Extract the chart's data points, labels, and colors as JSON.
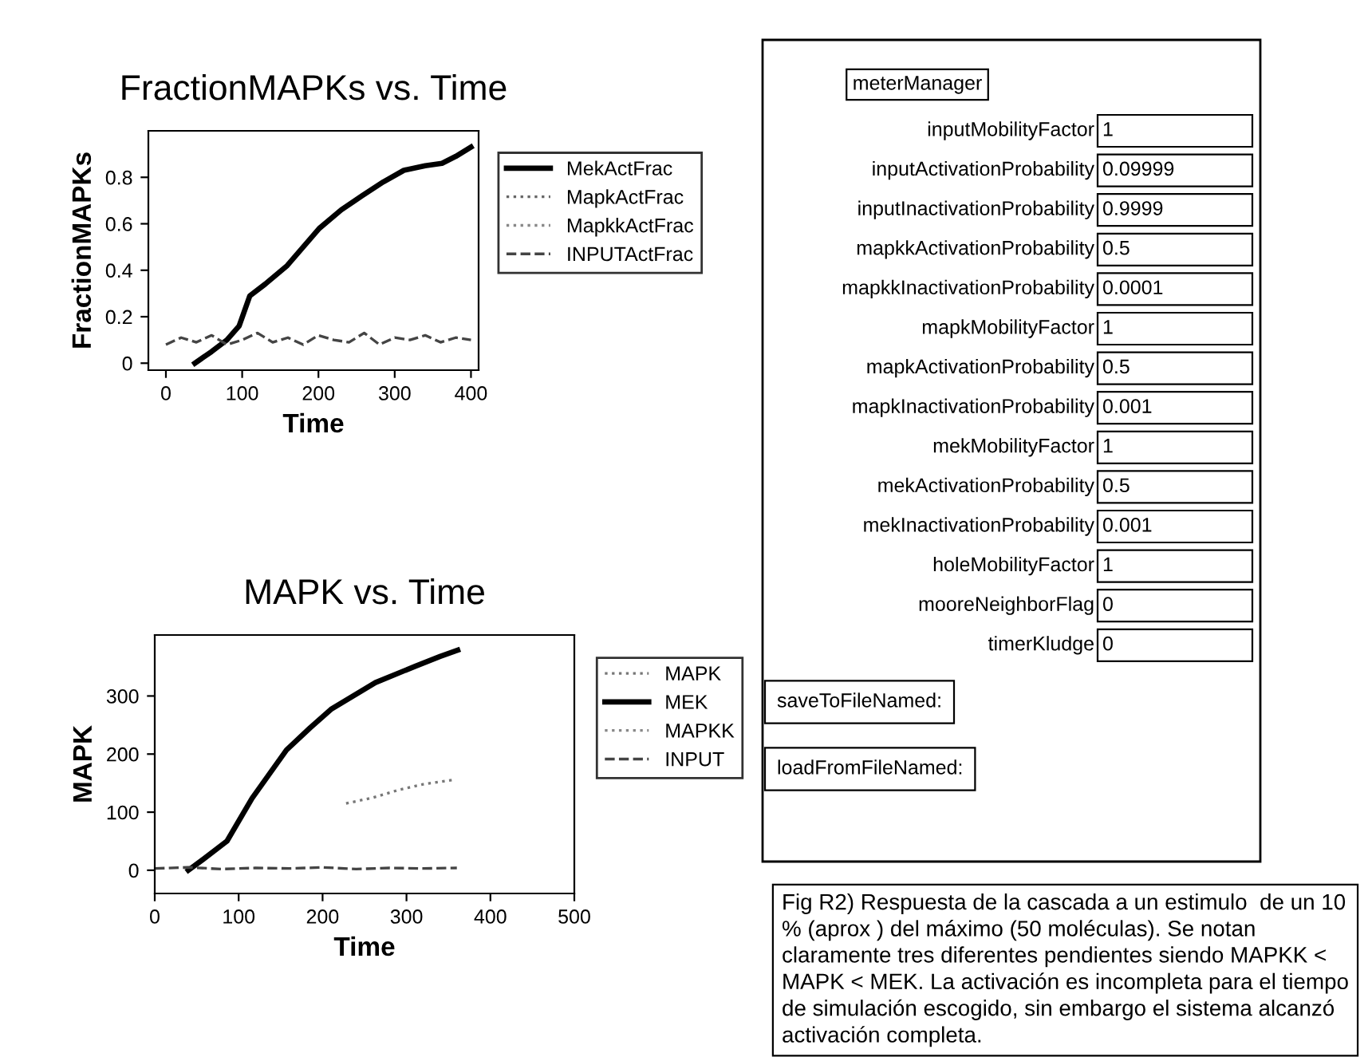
{
  "chart_data": [
    {
      "type": "line",
      "title": "FractionMAPKs vs. Time",
      "xlabel": "Time",
      "ylabel": "FractionMAPKs",
      "xlim": [
        -23,
        410
      ],
      "xticks": [
        0,
        100,
        200,
        300,
        400
      ],
      "ylim": [
        -0.03,
        1.0
      ],
      "yticks": [
        0,
        0.2,
        0.4,
        0.6,
        0.8
      ],
      "legend": "right",
      "grid": false,
      "series": [
        {
          "name": "MekActFrac",
          "color": "#000000",
          "line_style": "solid",
          "x": [
            38,
            60,
            80,
            96,
            110,
            130,
            159,
            180,
            201,
            230,
            257,
            285,
            312,
            340,
            362,
            380,
            400
          ],
          "values": [
            0,
            0.05,
            0.1,
            0.16,
            0.29,
            0.34,
            0.42,
            0.5,
            0.58,
            0.66,
            0.72,
            0.78,
            0.83,
            0.85,
            0.86,
            0.89,
            0.93
          ]
        },
        {
          "name": "MapkActFrac",
          "color": "#666666",
          "line_style": "dotted"
        },
        {
          "name": "MapkkActFrac",
          "color": "#888888",
          "line_style": "dotted"
        },
        {
          "name": "INPUTActFrac",
          "color": "#444444",
          "line_style": "dashed",
          "x": [
            0,
            20,
            40,
            60,
            80,
            100,
            120,
            140,
            160,
            180,
            200,
            220,
            240,
            260,
            280,
            300,
            320,
            340,
            360,
            380,
            400
          ],
          "values": [
            0.08,
            0.11,
            0.09,
            0.12,
            0.08,
            0.1,
            0.13,
            0.09,
            0.11,
            0.08,
            0.12,
            0.1,
            0.09,
            0.13,
            0.08,
            0.11,
            0.1,
            0.12,
            0.09,
            0.11,
            0.1
          ]
        }
      ]
    },
    {
      "type": "other",
      "title": "meterManager",
      "annotations": [
        "inputMobilityFactor",
        "1",
        "inputActivationProbability",
        "0.09999",
        "inputInactivationProbability",
        "0.9999",
        "mapkkActivationProbability",
        "0.5",
        "mapkkInactivationProbability",
        "0.0001",
        "mapkMobilityFactor",
        "1",
        "mapkActivationProbability",
        "0.5",
        "mapkInactivationProbability",
        "0.001",
        "mekMobilityFactor",
        "1",
        "mekActivationProbability",
        "0.5",
        "mekInactivationProbability",
        "0.001",
        "holeMobilityFactor",
        "1",
        "mooreNeighborFlag",
        "0",
        "timerKludge",
        "0",
        "saveToFileNamed:",
        "loadFromFileNamed:",
        "Fig R2) Respuesta de la cascada a un estimulo  de un 10 % (aprox ) del máximo (50 moléculas). Se notan claramente tres diferentes pendientes siendo MAPKK < MAPK < MEK. La activación es incompleta para el tiempo de simulación escogido, sin embargo el sistema alcanzó activación completa."
      ]
    },
    {
      "type": "line",
      "title": "MAPK vs. Time",
      "xlabel": "Time",
      "ylabel": "MAPK",
      "xlim": [
        0,
        500
      ],
      "xticks": [
        0,
        100,
        200,
        300,
        400,
        500
      ],
      "ylim": [
        -40,
        405
      ],
      "yticks": [
        0,
        100,
        200,
        300
      ],
      "legend": "right",
      "grid": false,
      "series": [
        {
          "name": "MAPK",
          "color": "#777777",
          "line_style": "dotted",
          "x": [
            228,
            260,
            290,
            320,
            357
          ],
          "values": [
            115,
            125,
            138,
            148,
            156
          ]
        },
        {
          "name": "MEK",
          "color": "#000000",
          "line_style": "solid",
          "x": [
            40,
            57,
            86,
            116,
            157,
            185,
            210,
            263,
            310,
            340,
            361
          ],
          "values": [
            0,
            18,
            50,
            124,
            207,
            245,
            277,
            323,
            351,
            368,
            379
          ]
        },
        {
          "name": "MAPKK",
          "color": "#888888",
          "line_style": "dotted"
        },
        {
          "name": "INPUT",
          "color": "#444444",
          "line_style": "dashed",
          "x": [
            0,
            40,
            80,
            120,
            160,
            200,
            240,
            280,
            320,
            360
          ],
          "values": [
            3,
            5,
            2,
            4,
            3,
            5,
            2,
            4,
            3,
            4
          ]
        }
      ]
    }
  ]
}
